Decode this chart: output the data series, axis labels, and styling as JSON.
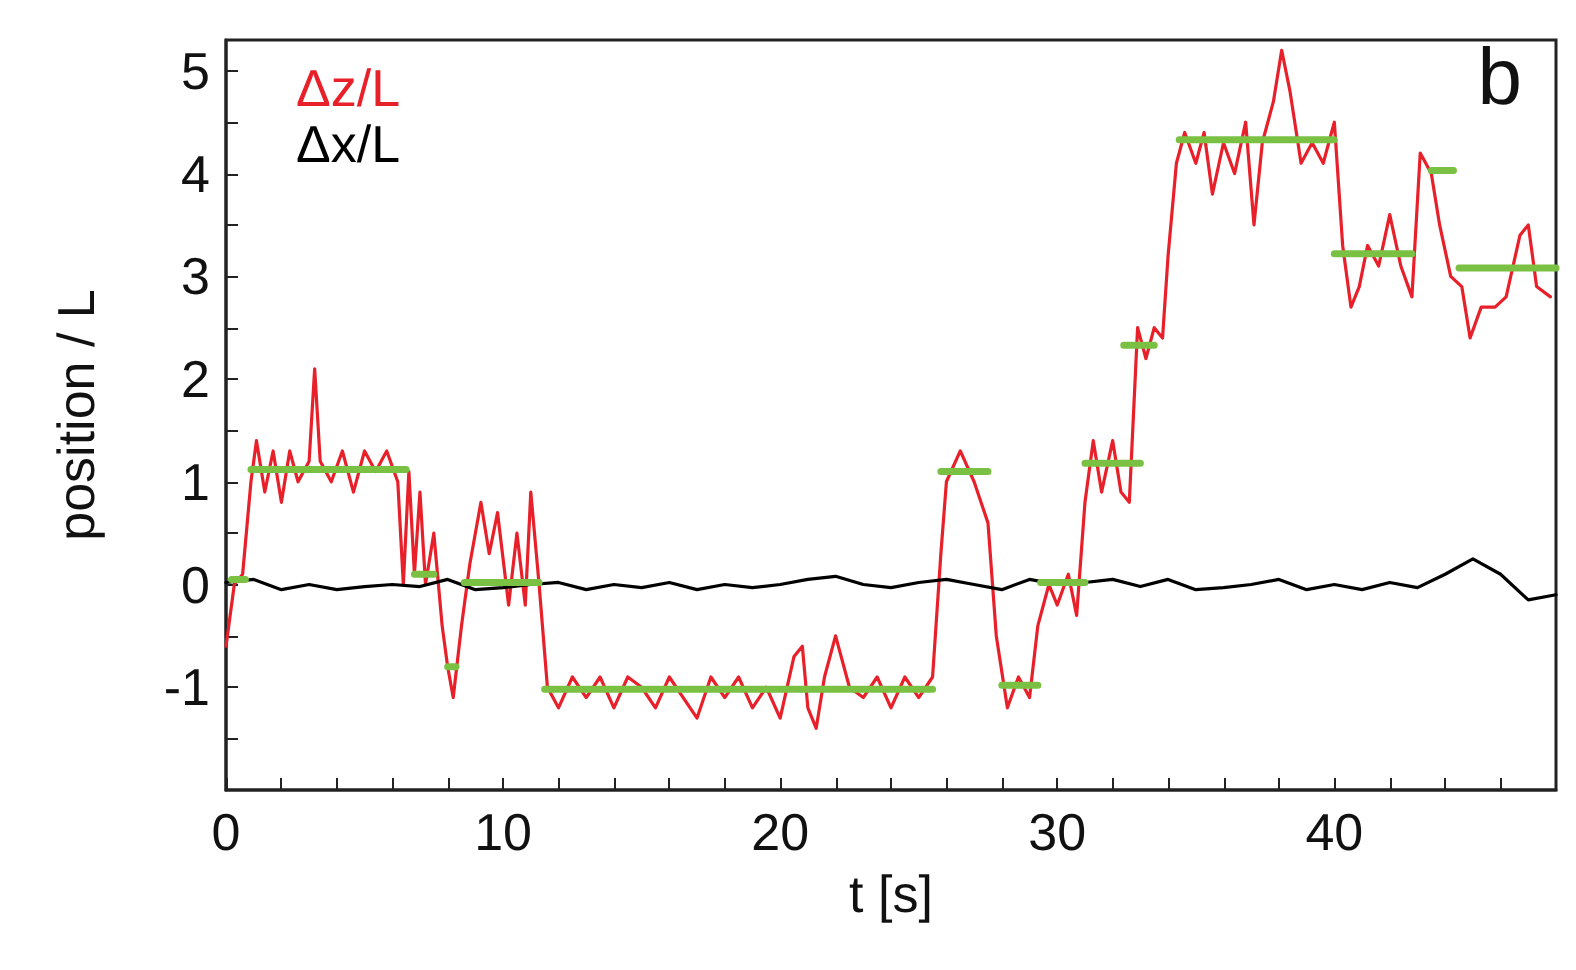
{
  "chart_data": {
    "type": "line",
    "xlabel": "t [s]",
    "ylabel": "position / L",
    "annotations": [
      "b"
    ],
    "xlim": [
      0,
      48
    ],
    "xticks": [
      0,
      {
        "value": 2,
        "label": null
      },
      {
        "value": 4,
        "label": null
      },
      {
        "value": 6,
        "label": null
      },
      {
        "value": 8,
        "label": null
      },
      10,
      {
        "value": 12,
        "label": null
      },
      {
        "value": 14,
        "label": null
      },
      {
        "value": 16,
        "label": null
      },
      {
        "value": 18,
        "label": null
      },
      20,
      {
        "value": 22,
        "label": null
      },
      {
        "value": 24,
        "label": null
      },
      {
        "value": 26,
        "label": null
      },
      {
        "value": 28,
        "label": null
      },
      30,
      {
        "value": 32,
        "label": null
      },
      {
        "value": 34,
        "label": null
      },
      {
        "value": 36,
        "label": null
      },
      {
        "value": 38,
        "label": null
      },
      40,
      {
        "value": 42,
        "label": null
      },
      {
        "value": 44,
        "label": null
      },
      {
        "value": 46,
        "label": null
      }
    ],
    "ylim": [
      -2,
      5.3
    ],
    "yticks": [
      {
        "value": -1.5,
        "label": null
      },
      -1,
      {
        "value": -0.5,
        "label": null
      },
      0,
      {
        "value": 0.5,
        "label": null
      },
      1,
      {
        "value": 1.5,
        "label": null
      },
      2,
      {
        "value": 2.5,
        "label": null
      },
      3,
      {
        "value": 3.5,
        "label": null
      },
      4,
      {
        "value": 4.5,
        "label": null
      },
      5
    ],
    "grid": false,
    "legend": "top left",
    "marker": "none",
    "line_style": "solid",
    "series": [
      {
        "name": "Δz/L",
        "color": "#e8202a",
        "x": [
          0,
          0.3,
          0.6,
          0.9,
          1.1,
          1.4,
          1.7,
          2.0,
          2.3,
          2.6,
          3.0,
          3.2,
          3.4,
          3.8,
          4.2,
          4.6,
          5.0,
          5.4,
          5.8,
          6.2,
          6.4,
          6.6,
          6.8,
          7.0,
          7.2,
          7.5,
          7.8,
          8.0,
          8.2,
          8.5,
          8.8,
          9.2,
          9.5,
          9.8,
          10.2,
          10.5,
          10.8,
          11.0,
          11.3,
          11.6,
          12.0,
          12.5,
          13.0,
          13.5,
          14.0,
          14.5,
          15.0,
          15.5,
          16.0,
          16.5,
          17.0,
          17.5,
          18.0,
          18.5,
          19.0,
          19.5,
          20.0,
          20.5,
          20.8,
          21.0,
          21.3,
          21.6,
          22.0,
          22.5,
          23.0,
          23.5,
          24.0,
          24.5,
          25.0,
          25.5,
          25.8,
          26.0,
          26.5,
          27.0,
          27.5,
          27.8,
          28.2,
          28.6,
          29.0,
          29.3,
          29.7,
          30.0,
          30.4,
          30.7,
          31.0,
          31.3,
          31.6,
          32.0,
          32.3,
          32.6,
          32.9,
          33.2,
          33.5,
          33.8,
          34.0,
          34.3,
          34.6,
          35.0,
          35.3,
          35.6,
          36.0,
          36.4,
          36.8,
          37.1,
          37.4,
          37.8,
          38.1,
          38.4,
          38.8,
          39.2,
          39.6,
          40.0,
          40.3,
          40.6,
          40.9,
          41.2,
          41.6,
          42.0,
          42.4,
          42.8,
          43.1,
          43.5,
          43.8,
          44.2,
          44.6,
          44.9,
          45.3,
          45.8,
          46.2,
          46.7,
          47.0,
          47.3,
          47.8
        ],
        "values": [
          -0.6,
          0,
          0.1,
          1.0,
          1.4,
          0.9,
          1.3,
          0.8,
          1.3,
          1.0,
          1.2,
          2.1,
          1.2,
          1.0,
          1.3,
          0.9,
          1.3,
          1.1,
          1.3,
          1.0,
          0.0,
          1.1,
          0.1,
          0.9,
          0.0,
          0.5,
          -0.4,
          -0.8,
          -1.1,
          -0.4,
          0.2,
          0.8,
          0.3,
          0.7,
          -0.2,
          0.5,
          -0.2,
          0.9,
          0.0,
          -1.0,
          -1.2,
          -0.9,
          -1.1,
          -0.9,
          -1.2,
          -0.9,
          -1.0,
          -1.2,
          -0.9,
          -1.1,
          -1.3,
          -0.9,
          -1.1,
          -0.9,
          -1.2,
          -1.0,
          -1.3,
          -0.7,
          -0.6,
          -1.2,
          -1.4,
          -0.9,
          -0.5,
          -1.0,
          -1.1,
          -0.9,
          -1.2,
          -0.9,
          -1.1,
          -0.9,
          0.3,
          1.0,
          1.3,
          1.0,
          0.6,
          -0.5,
          -1.2,
          -0.9,
          -1.1,
          -0.4,
          0.0,
          -0.2,
          0.1,
          -0.3,
          0.8,
          1.4,
          0.9,
          1.4,
          0.9,
          0.8,
          2.5,
          2.2,
          2.5,
          2.4,
          3.2,
          4.1,
          4.4,
          4.1,
          4.4,
          3.8,
          4.3,
          4.0,
          4.5,
          3.5,
          4.3,
          4.7,
          5.2,
          4.8,
          4.1,
          4.3,
          4.1,
          4.5,
          3.3,
          2.7,
          2.9,
          3.3,
          3.1,
          3.6,
          3.1,
          2.8,
          4.2,
          4.0,
          3.5,
          3.0,
          2.9,
          2.4,
          2.7,
          2.7,
          2.8,
          3.4,
          3.5,
          2.9,
          2.8
        ]
      },
      {
        "name": "Δx/L",
        "color": "#000000",
        "x": [
          0,
          1,
          2,
          3,
          4,
          5,
          6,
          7,
          8,
          9,
          10,
          11,
          12,
          13,
          14,
          15,
          16,
          17,
          18,
          19,
          20,
          21,
          22,
          23,
          24,
          25,
          26,
          27,
          28,
          29,
          30,
          31,
          32,
          33,
          34,
          35,
          36,
          37,
          38,
          39,
          40,
          41,
          42,
          43,
          44,
          45,
          46,
          47,
          48
        ],
        "values": [
          0.02,
          0.05,
          -0.05,
          0.0,
          -0.05,
          -0.02,
          0.0,
          -0.02,
          0.05,
          -0.05,
          -0.03,
          0.0,
          0.02,
          -0.05,
          0.0,
          -0.03,
          0.02,
          -0.05,
          0.0,
          -0.03,
          0.0,
          0.05,
          0.08,
          0.0,
          -0.03,
          0.02,
          0.05,
          0.0,
          -0.05,
          0.05,
          0.0,
          0.02,
          0.05,
          -0.02,
          0.05,
          -0.05,
          -0.03,
          0.0,
          0.05,
          -0.05,
          0.0,
          -0.05,
          0.02,
          -0.03,
          0.1,
          0.25,
          0.1,
          -0.15,
          -0.1
        ]
      },
      {
        "color": "#7ac143",
        "x": [
          0.2,
          0.7,
          null,
          0.9,
          6.5,
          null,
          6.8,
          7.5,
          null,
          8.0,
          8.3,
          null,
          8.6,
          11.3,
          null,
          11.5,
          25.5,
          null,
          25.8,
          27.5,
          null,
          28.0,
          29.3,
          null,
          29.4,
          31.0,
          null,
          31.0,
          33.0,
          null,
          32.4,
          33.5,
          null,
          34.4,
          40.0,
          null,
          40.0,
          42.8,
          null,
          43.5,
          44.3,
          null,
          44.5,
          48.0
        ],
        "values": [
          0.05,
          0.05,
          null,
          1.12,
          1.12,
          null,
          0.1,
          0.1,
          null,
          -0.8,
          -0.8,
          null,
          0.02,
          0.02,
          null,
          -1.02,
          -1.02,
          null,
          1.1,
          1.1,
          null,
          -0.98,
          -0.98,
          null,
          0.02,
          0.02,
          null,
          1.18,
          1.18,
          null,
          2.33,
          2.33,
          null,
          4.33,
          4.33,
          null,
          3.22,
          3.22,
          null,
          4.03,
          4.03,
          null,
          3.08,
          3.08
        ]
      }
    ]
  }
}
